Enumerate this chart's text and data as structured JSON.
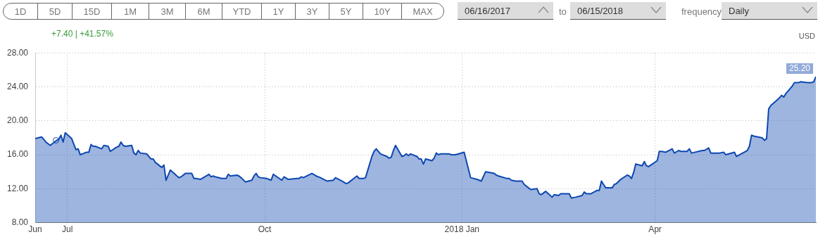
{
  "chart_data": {
    "type": "area",
    "x": [
      "2017-06-16",
      "2017-06-19",
      "2017-06-21",
      "2017-06-23",
      "2017-06-26",
      "2017-06-27",
      "2017-06-28",
      "2017-06-29",
      "2017-06-30",
      "2017-07-03",
      "2017-07-05",
      "2017-07-06",
      "2017-07-07",
      "2017-07-10",
      "2017-07-11",
      "2017-07-12",
      "2017-07-13",
      "2017-07-14",
      "2017-07-17",
      "2017-07-18",
      "2017-07-20",
      "2017-07-21",
      "2017-07-24",
      "2017-07-25",
      "2017-07-26",
      "2017-07-27",
      "2017-07-28",
      "2017-07-31",
      "2017-08-01",
      "2017-08-02",
      "2017-08-03",
      "2017-08-04",
      "2017-08-07",
      "2017-08-09",
      "2017-08-10",
      "2017-08-11",
      "2017-08-14",
      "2017-08-15",
      "2017-08-16",
      "2017-08-18",
      "2017-08-22",
      "2017-08-23",
      "2017-08-25",
      "2017-08-28",
      "2017-08-29",
      "2017-08-30",
      "2017-09-01",
      "2017-09-05",
      "2017-09-06",
      "2017-09-07",
      "2017-09-08",
      "2017-09-11",
      "2017-09-12",
      "2017-09-13",
      "2017-09-14",
      "2017-09-15",
      "2017-09-18",
      "2017-09-19",
      "2017-09-20",
      "2017-09-22",
      "2017-09-25",
      "2017-09-26",
      "2017-09-27",
      "2017-09-28",
      "2017-09-29",
      "2017-10-02",
      "2017-10-04",
      "2017-10-05",
      "2017-10-09",
      "2017-10-10",
      "2017-10-12",
      "2017-10-16",
      "2017-10-17",
      "2017-10-18",
      "2017-10-19",
      "2017-10-23",
      "2017-10-25",
      "2017-10-27",
      "2017-10-30",
      "2017-11-02",
      "2017-11-03",
      "2017-11-06",
      "2017-11-08",
      "2017-11-09",
      "2017-11-13",
      "2017-11-14",
      "2017-11-16",
      "2017-11-17",
      "2017-11-20",
      "2017-11-21",
      "2017-11-22",
      "2017-11-24",
      "2017-11-27",
      "2017-11-28",
      "2017-11-29",
      "2017-11-30",
      "2017-12-01",
      "2017-12-04",
      "2017-12-05",
      "2017-12-06",
      "2017-12-07",
      "2017-12-08",
      "2017-12-11",
      "2017-12-12",
      "2017-12-13",
      "2017-12-14",
      "2017-12-15",
      "2017-12-18",
      "2017-12-19",
      "2017-12-20",
      "2017-12-21",
      "2017-12-22",
      "2017-12-26",
      "2017-12-27",
      "2017-12-28",
      "2017-12-29",
      "2018-01-02",
      "2018-01-03",
      "2018-01-05",
      "2018-01-08",
      "2018-01-10",
      "2018-01-12",
      "2018-01-16",
      "2018-01-17",
      "2018-01-18",
      "2018-01-22",
      "2018-01-23",
      "2018-01-24",
      "2018-01-26",
      "2018-01-29",
      "2018-01-30",
      "2018-02-01",
      "2018-02-02",
      "2018-02-05",
      "2018-02-06",
      "2018-02-07",
      "2018-02-08",
      "2018-02-09",
      "2018-02-12",
      "2018-02-13",
      "2018-02-15",
      "2018-02-16",
      "2018-02-20",
      "2018-02-21",
      "2018-02-23",
      "2018-02-26",
      "2018-02-27",
      "2018-02-28",
      "2018-03-02",
      "2018-03-05",
      "2018-03-06",
      "2018-03-07",
      "2018-03-08",
      "2018-03-09",
      "2018-03-12",
      "2018-03-13",
      "2018-03-14",
      "2018-03-16",
      "2018-03-19",
      "2018-03-20",
      "2018-03-21",
      "2018-03-22",
      "2018-03-23",
      "2018-03-26",
      "2018-03-27",
      "2018-03-28",
      "2018-03-29",
      "2018-04-02",
      "2018-04-03",
      "2018-04-04",
      "2018-04-06",
      "2018-04-09",
      "2018-04-10",
      "2018-04-12",
      "2018-04-13",
      "2018-04-16",
      "2018-04-17",
      "2018-04-18",
      "2018-04-23",
      "2018-04-24",
      "2018-04-26",
      "2018-04-27",
      "2018-05-01",
      "2018-05-03",
      "2018-05-04",
      "2018-05-08",
      "2018-05-09",
      "2018-05-14",
      "2018-05-15",
      "2018-05-16",
      "2018-05-17",
      "2018-05-21",
      "2018-05-22",
      "2018-05-23",
      "2018-05-24",
      "2018-05-25",
      "2018-05-29",
      "2018-05-30",
      "2018-05-31",
      "2018-06-01",
      "2018-06-04",
      "2018-06-05",
      "2018-06-07",
      "2018-06-08",
      "2018-06-11",
      "2018-06-12",
      "2018-06-13",
      "2018-06-14",
      "2018-06-15"
    ],
    "series": [
      {
        "color": "#0d47b0",
        "values": [
          17.9,
          18.1,
          17.5,
          17.1,
          17.7,
          17.8,
          18.3,
          17.5,
          18.6,
          17.9,
          16.6,
          16.7,
          16.0,
          16.3,
          16.3,
          17.2,
          17.0,
          17.0,
          16.7,
          17.1,
          17.0,
          16.4,
          16.9,
          17.0,
          17.5,
          17.1,
          17.0,
          17.1,
          16.2,
          16.0,
          16.5,
          16.2,
          16.1,
          15.5,
          15.5,
          15.1,
          14.5,
          14.8,
          13.0,
          14.2,
          13.3,
          13.4,
          13.8,
          13.8,
          13.2,
          13.2,
          13.1,
          13.7,
          13.4,
          13.5,
          13.4,
          13.2,
          13.2,
          13.2,
          13.7,
          13.5,
          13.6,
          13.5,
          13.3,
          12.8,
          13.0,
          13.5,
          13.8,
          13.4,
          13.3,
          13.2,
          13.0,
          13.7,
          13.0,
          13.4,
          13.1,
          13.2,
          13.2,
          13.4,
          13.3,
          13.8,
          13.5,
          13.3,
          12.9,
          13.0,
          13.3,
          12.9,
          12.6,
          12.7,
          13.5,
          13.2,
          13.2,
          13.3,
          15.8,
          16.4,
          16.7,
          16.1,
          15.8,
          15.6,
          15.7,
          16.5,
          17.1,
          15.8,
          15.9,
          16.1,
          15.9,
          16.1,
          15.8,
          15.5,
          15.5,
          14.9,
          15.5,
          15.3,
          15.6,
          16.2,
          16.0,
          16.1,
          16.1,
          16.0,
          16.0,
          16.0,
          16.3,
          15.3,
          13.3,
          13.1,
          12.9,
          14.0,
          13.8,
          13.6,
          13.5,
          13.2,
          13.2,
          13.0,
          12.9,
          12.9,
          12.5,
          12.1,
          11.9,
          12.0,
          11.4,
          11.3,
          11.5,
          11.7,
          11.0,
          11.3,
          11.2,
          11.4,
          11.4,
          10.9,
          11.0,
          11.2,
          11.6,
          11.4,
          11.4,
          11.8,
          11.8,
          12.9,
          12.5,
          12.1,
          12.1,
          12.5,
          12.6,
          13.1,
          13.6,
          13.5,
          13.2,
          13.9,
          14.9,
          14.7,
          15.2,
          14.7,
          14.6,
          15.3,
          16.4,
          16.4,
          16.3,
          16.7,
          16.2,
          16.5,
          16.4,
          16.4,
          16.7,
          16.2,
          16.5,
          16.5,
          16.8,
          16.2,
          16.2,
          16.3,
          16.0,
          16.3,
          15.8,
          16.5,
          17.0,
          18.3,
          18.2,
          18.0,
          17.7,
          17.9,
          21.4,
          21.8,
          22.7,
          23.0,
          22.8,
          23.2,
          24.1,
          24.5,
          24.5,
          24.6,
          24.5,
          24.5,
          24.5,
          24.6,
          25.2
        ]
      }
    ],
    "xlim": [
      "2017-06-16",
      "2018-06-15"
    ],
    "xticks": [
      {
        "value": "2017-06-16",
        "label": "Jun"
      },
      {
        "value": "2017-07-01",
        "label": "Jul"
      },
      {
        "value": "2017-10-01",
        "label": "Oct"
      },
      {
        "value": "2018-01-01",
        "label": "2018 Jan"
      },
      {
        "value": "2018-04-01",
        "label": "Apr"
      }
    ],
    "ylim": [
      8,
      28
    ],
    "yticks": [
      {
        "value": 8,
        "label": "8.00"
      },
      {
        "value": 12,
        "label": "12.00"
      },
      {
        "value": 16,
        "label": "16.00"
      },
      {
        "value": 20,
        "label": "20.00"
      },
      {
        "value": 24,
        "label": "24.00"
      },
      {
        "value": 28,
        "label": "28.00"
      }
    ],
    "grid": true,
    "marker": "none",
    "annotations": [
      "1D",
      "5D",
      "15D",
      "1M",
      "3M",
      "6M",
      "YTD",
      "1Y",
      "3Y",
      "5Y",
      "10Y",
      "MAX",
      "06/16/2017",
      "to",
      "06/15/2018",
      "frequency",
      "Daily",
      "+7.40 | +41.57%",
      "USD",
      {
        "text": "25.20",
        "x": "2018-06-15",
        "y": 25.2
      }
    ]
  }
}
